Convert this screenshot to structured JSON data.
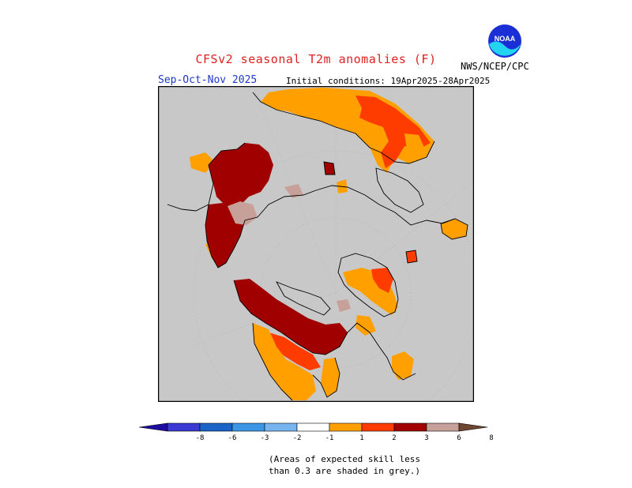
{
  "header": {
    "title": "CFSv2 seasonal T2m anomalies (F)",
    "season": "Sep-Oct-Nov 2025",
    "initial_conditions": "Initial conditions: 19Apr2025-28Apr2025",
    "agency": "NWS/NCEP/CPC",
    "logo_text": "NOAA",
    "logo_icon": "noaa-logo-icon"
  },
  "legend": {
    "tick_labels": [
      "-8",
      "-6",
      "-3",
      "-2",
      "-1",
      "1",
      "2",
      "3",
      "6",
      "8"
    ],
    "colors": [
      "#1e0ca0",
      "#3a3ad2",
      "#1a64c8",
      "#3c96e6",
      "#78b4f0",
      "#ffffff",
      "#ffa000",
      "#ff3c00",
      "#a00000",
      "#c8a09a",
      "#6e4632"
    ],
    "note_line1": "(Areas of expected skill less",
    "note_line2": "than 0.3 are shaded in grey.)"
  },
  "map": {
    "projection": "north-polar-stereographic",
    "background_grey": "#c8c8c8",
    "coastline_color": "#000000"
  }
}
